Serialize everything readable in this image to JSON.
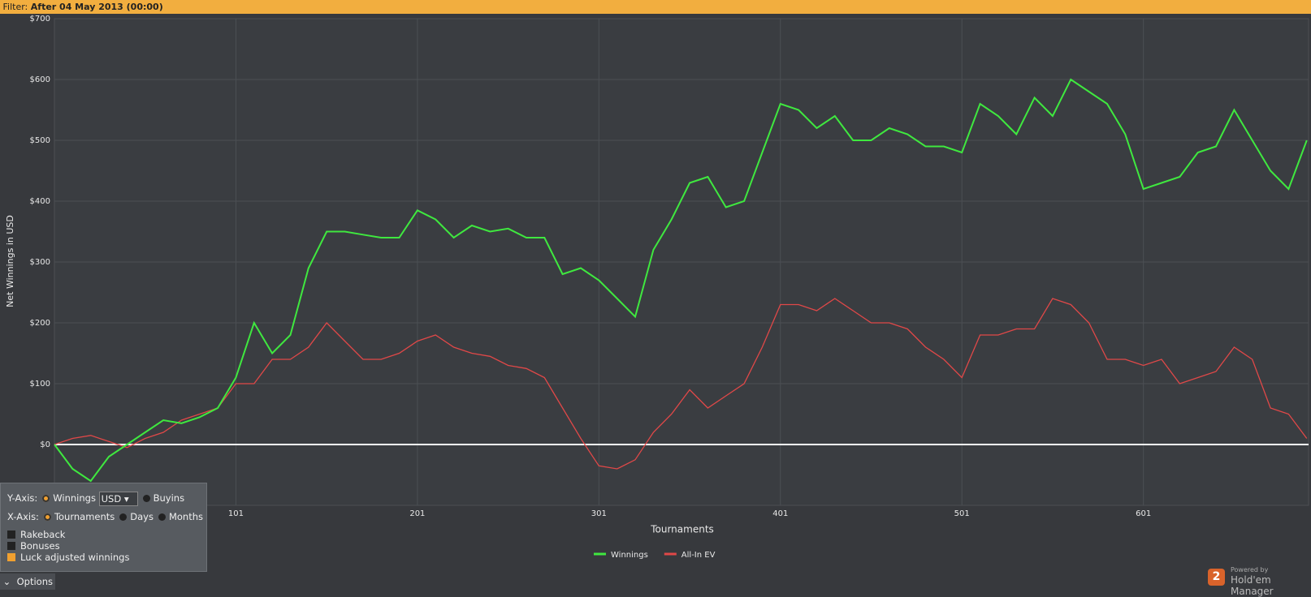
{
  "filter": {
    "label": "Filter:",
    "value": "After 04 May 2013 (00:00)"
  },
  "chart_data": {
    "type": "line",
    "ylabel": "Net Winnings in USD",
    "xlabel": "Tournaments",
    "x": [
      1,
      11,
      21,
      31,
      41,
      51,
      61,
      71,
      81,
      91,
      101,
      111,
      121,
      131,
      141,
      151,
      161,
      171,
      181,
      191,
      201,
      211,
      221,
      231,
      241,
      251,
      261,
      271,
      281,
      291,
      301,
      311,
      321,
      331,
      341,
      351,
      361,
      371,
      381,
      391,
      401,
      411,
      421,
      431,
      441,
      451,
      461,
      471,
      481,
      491,
      501,
      511,
      521,
      531,
      541,
      551,
      561,
      571,
      581,
      591,
      601,
      611,
      621,
      631,
      641,
      651,
      661,
      671,
      681,
      691
    ],
    "series": [
      {
        "name": "Winnings",
        "color": "#3fe83f",
        "values": [
          0,
          -40,
          -60,
          -20,
          0,
          20,
          40,
          35,
          45,
          60,
          110,
          200,
          150,
          180,
          290,
          350,
          350,
          345,
          340,
          340,
          385,
          370,
          340,
          360,
          350,
          355,
          340,
          340,
          280,
          290,
          270,
          240,
          210,
          320,
          370,
          430,
          440,
          390,
          400,
          480,
          560,
          550,
          520,
          540,
          500,
          500,
          520,
          510,
          490,
          490,
          480,
          560,
          540,
          510,
          570,
          540,
          600,
          580,
          560,
          510,
          420,
          430,
          440,
          480,
          490,
          550,
          500,
          450,
          420,
          500
        ]
      },
      {
        "name": "All-In EV",
        "color": "#e04848",
        "values": [
          0,
          10,
          15,
          5,
          -5,
          10,
          20,
          40,
          50,
          60,
          100,
          100,
          140,
          140,
          160,
          200,
          170,
          140,
          140,
          150,
          170,
          180,
          160,
          150,
          145,
          130,
          125,
          110,
          60,
          10,
          -35,
          -40,
          -25,
          20,
          50,
          90,
          60,
          80,
          100,
          160,
          230,
          230,
          220,
          240,
          220,
          200,
          200,
          190,
          160,
          140,
          110,
          180,
          180,
          190,
          190,
          240,
          230,
          200,
          140,
          140,
          130,
          140,
          100,
          110,
          120,
          160,
          140,
          60,
          50,
          10
        ]
      }
    ],
    "xlim": [
      1,
      692
    ],
    "ylim": [
      -100,
      700
    ],
    "xticks": [
      101,
      201,
      301,
      401,
      501,
      601
    ],
    "yticks": [
      {
        "value": 0,
        "label": "$0"
      },
      {
        "value": 100,
        "label": "$100"
      },
      {
        "value": 200,
        "label": "$200"
      },
      {
        "value": 300,
        "label": "$300"
      },
      {
        "value": 400,
        "label": "$400"
      },
      {
        "value": 500,
        "label": "$500"
      },
      {
        "value": 600,
        "label": "$600"
      },
      {
        "value": 700,
        "label": "$700"
      }
    ],
    "grid": true,
    "legend": "bottom"
  },
  "options_panel": {
    "y_axis_label": "Y-Axis:",
    "y_options": [
      "Winnings",
      "Buyins"
    ],
    "currency": "USD",
    "x_axis_label": "X-Axis:",
    "x_options": [
      "Tournaments",
      "Days",
      "Months"
    ],
    "checkboxes": [
      "Rakeback",
      "Bonuses",
      "Luck adjusted winnings"
    ],
    "toggle": "Options"
  },
  "branding": {
    "badge": "2",
    "powered": "Powered by",
    "product": "Hold'em Manager"
  }
}
